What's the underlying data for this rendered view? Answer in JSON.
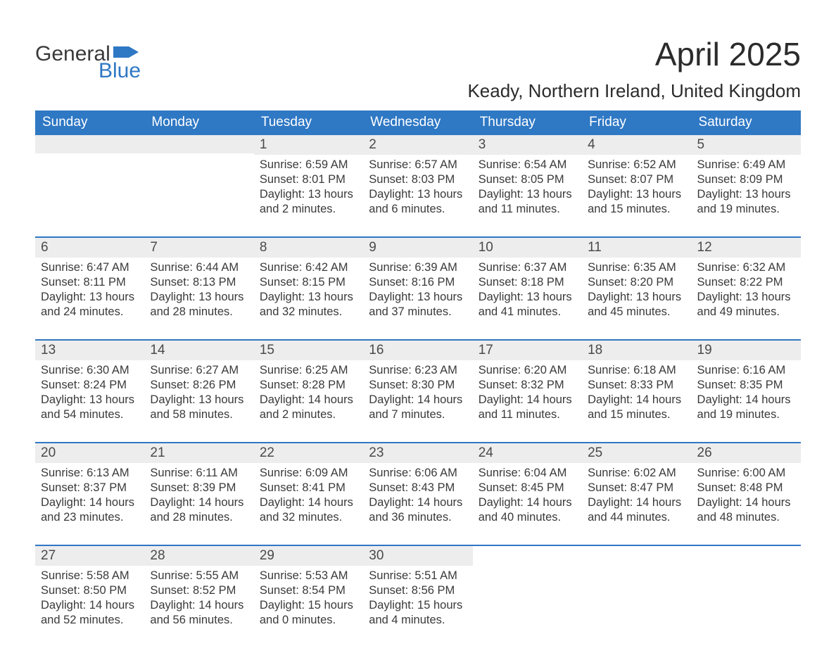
{
  "brand": {
    "word1": "General",
    "word2": "Blue",
    "color": "#2f78c4"
  },
  "title": "April 2025",
  "location": "Keady, Northern Ireland, United Kingdom",
  "colors": {
    "header_bg": "#2f78c4",
    "header_text": "#ffffff",
    "daynum_bg": "#ededed",
    "rule": "#2f78c4",
    "body_text": "#3a3a3a"
  },
  "days_of_week": [
    "Sunday",
    "Monday",
    "Tuesday",
    "Wednesday",
    "Thursday",
    "Friday",
    "Saturday"
  ],
  "weeks": [
    [
      {
        "n": "",
        "lines": []
      },
      {
        "n": "",
        "lines": []
      },
      {
        "n": "1",
        "lines": [
          "Sunrise: 6:59 AM",
          "Sunset: 8:01 PM",
          "Daylight: 13 hours and 2 minutes."
        ]
      },
      {
        "n": "2",
        "lines": [
          "Sunrise: 6:57 AM",
          "Sunset: 8:03 PM",
          "Daylight: 13 hours and 6 minutes."
        ]
      },
      {
        "n": "3",
        "lines": [
          "Sunrise: 6:54 AM",
          "Sunset: 8:05 PM",
          "Daylight: 13 hours and 11 minutes."
        ]
      },
      {
        "n": "4",
        "lines": [
          "Sunrise: 6:52 AM",
          "Sunset: 8:07 PM",
          "Daylight: 13 hours and 15 minutes."
        ]
      },
      {
        "n": "5",
        "lines": [
          "Sunrise: 6:49 AM",
          "Sunset: 8:09 PM",
          "Daylight: 13 hours and 19 minutes."
        ]
      }
    ],
    [
      {
        "n": "6",
        "lines": [
          "Sunrise: 6:47 AM",
          "Sunset: 8:11 PM",
          "Daylight: 13 hours and 24 minutes."
        ]
      },
      {
        "n": "7",
        "lines": [
          "Sunrise: 6:44 AM",
          "Sunset: 8:13 PM",
          "Daylight: 13 hours and 28 minutes."
        ]
      },
      {
        "n": "8",
        "lines": [
          "Sunrise: 6:42 AM",
          "Sunset: 8:15 PM",
          "Daylight: 13 hours and 32 minutes."
        ]
      },
      {
        "n": "9",
        "lines": [
          "Sunrise: 6:39 AM",
          "Sunset: 8:16 PM",
          "Daylight: 13 hours and 37 minutes."
        ]
      },
      {
        "n": "10",
        "lines": [
          "Sunrise: 6:37 AM",
          "Sunset: 8:18 PM",
          "Daylight: 13 hours and 41 minutes."
        ]
      },
      {
        "n": "11",
        "lines": [
          "Sunrise: 6:35 AM",
          "Sunset: 8:20 PM",
          "Daylight: 13 hours and 45 minutes."
        ]
      },
      {
        "n": "12",
        "lines": [
          "Sunrise: 6:32 AM",
          "Sunset: 8:22 PM",
          "Daylight: 13 hours and 49 minutes."
        ]
      }
    ],
    [
      {
        "n": "13",
        "lines": [
          "Sunrise: 6:30 AM",
          "Sunset: 8:24 PM",
          "Daylight: 13 hours and 54 minutes."
        ]
      },
      {
        "n": "14",
        "lines": [
          "Sunrise: 6:27 AM",
          "Sunset: 8:26 PM",
          "Daylight: 13 hours and 58 minutes."
        ]
      },
      {
        "n": "15",
        "lines": [
          "Sunrise: 6:25 AM",
          "Sunset: 8:28 PM",
          "Daylight: 14 hours and 2 minutes."
        ]
      },
      {
        "n": "16",
        "lines": [
          "Sunrise: 6:23 AM",
          "Sunset: 8:30 PM",
          "Daylight: 14 hours and 7 minutes."
        ]
      },
      {
        "n": "17",
        "lines": [
          "Sunrise: 6:20 AM",
          "Sunset: 8:32 PM",
          "Daylight: 14 hours and 11 minutes."
        ]
      },
      {
        "n": "18",
        "lines": [
          "Sunrise: 6:18 AM",
          "Sunset: 8:33 PM",
          "Daylight: 14 hours and 15 minutes."
        ]
      },
      {
        "n": "19",
        "lines": [
          "Sunrise: 6:16 AM",
          "Sunset: 8:35 PM",
          "Daylight: 14 hours and 19 minutes."
        ]
      }
    ],
    [
      {
        "n": "20",
        "lines": [
          "Sunrise: 6:13 AM",
          "Sunset: 8:37 PM",
          "Daylight: 14 hours and 23 minutes."
        ]
      },
      {
        "n": "21",
        "lines": [
          "Sunrise: 6:11 AM",
          "Sunset: 8:39 PM",
          "Daylight: 14 hours and 28 minutes."
        ]
      },
      {
        "n": "22",
        "lines": [
          "Sunrise: 6:09 AM",
          "Sunset: 8:41 PM",
          "Daylight: 14 hours and 32 minutes."
        ]
      },
      {
        "n": "23",
        "lines": [
          "Sunrise: 6:06 AM",
          "Sunset: 8:43 PM",
          "Daylight: 14 hours and 36 minutes."
        ]
      },
      {
        "n": "24",
        "lines": [
          "Sunrise: 6:04 AM",
          "Sunset: 8:45 PM",
          "Daylight: 14 hours and 40 minutes."
        ]
      },
      {
        "n": "25",
        "lines": [
          "Sunrise: 6:02 AM",
          "Sunset: 8:47 PM",
          "Daylight: 14 hours and 44 minutes."
        ]
      },
      {
        "n": "26",
        "lines": [
          "Sunrise: 6:00 AM",
          "Sunset: 8:48 PM",
          "Daylight: 14 hours and 48 minutes."
        ]
      }
    ],
    [
      {
        "n": "27",
        "lines": [
          "Sunrise: 5:58 AM",
          "Sunset: 8:50 PM",
          "Daylight: 14 hours and 52 minutes."
        ]
      },
      {
        "n": "28",
        "lines": [
          "Sunrise: 5:55 AM",
          "Sunset: 8:52 PM",
          "Daylight: 14 hours and 56 minutes."
        ]
      },
      {
        "n": "29",
        "lines": [
          "Sunrise: 5:53 AM",
          "Sunset: 8:54 PM",
          "Daylight: 15 hours and 0 minutes."
        ]
      },
      {
        "n": "30",
        "lines": [
          "Sunrise: 5:51 AM",
          "Sunset: 8:56 PM",
          "Daylight: 15 hours and 4 minutes."
        ]
      },
      {
        "n": "",
        "lines": []
      },
      {
        "n": "",
        "lines": []
      },
      {
        "n": "",
        "lines": []
      }
    ]
  ]
}
